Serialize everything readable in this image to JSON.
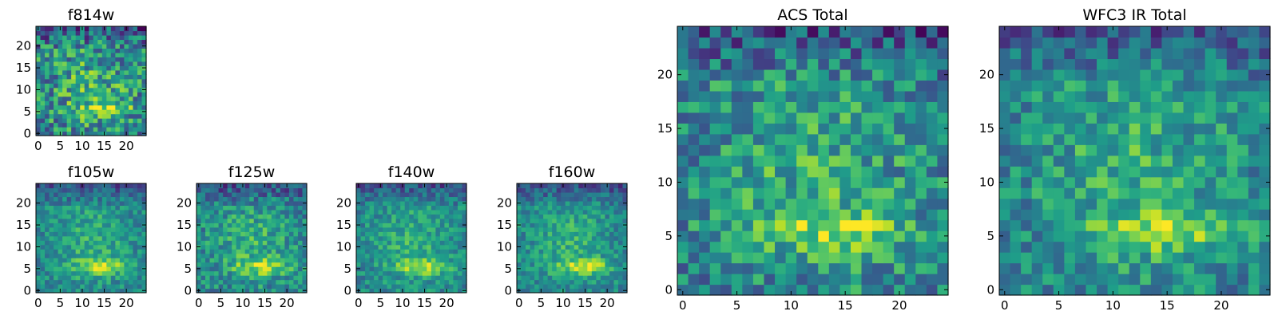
{
  "chart_data": [
    {
      "type": "heatmap",
      "title": "f814w",
      "grid_size": 25,
      "colormap": "viridis",
      "xticks": [
        "0",
        "5",
        "10",
        "15",
        "20"
      ],
      "yticks": [
        "0",
        "5",
        "10",
        "15",
        "20"
      ],
      "seed": 11,
      "noise": 0.3
    },
    {
      "type": "heatmap",
      "title": "f105w",
      "grid_size": 25,
      "colormap": "viridis",
      "xticks": [
        "0",
        "5",
        "10",
        "15",
        "20"
      ],
      "yticks": [
        "0",
        "5",
        "10",
        "15",
        "20"
      ],
      "seed": 23,
      "noise": 0.16
    },
    {
      "type": "heatmap",
      "title": "f125w",
      "grid_size": 25,
      "colormap": "viridis",
      "xticks": [
        "0",
        "5",
        "10",
        "15",
        "20"
      ],
      "yticks": [
        "0",
        "5",
        "10",
        "15",
        "20"
      ],
      "seed": 37,
      "noise": 0.2
    },
    {
      "type": "heatmap",
      "title": "f140w",
      "grid_size": 25,
      "colormap": "viridis",
      "xticks": [
        "0",
        "5",
        "10",
        "15",
        "20"
      ],
      "yticks": [
        "0",
        "5",
        "10",
        "15",
        "20"
      ],
      "seed": 41,
      "noise": 0.16
    },
    {
      "type": "heatmap",
      "title": "f160w",
      "grid_size": 25,
      "colormap": "viridis",
      "xticks": [
        "0",
        "5",
        "10",
        "15",
        "20"
      ],
      "yticks": [
        "0",
        "5",
        "10",
        "15",
        "20"
      ],
      "seed": 53,
      "noise": 0.16
    },
    {
      "type": "heatmap",
      "title": "ACS Total",
      "grid_size": 25,
      "colormap": "viridis",
      "xticks": [
        "0",
        "5",
        "10",
        "15",
        "20"
      ],
      "yticks": [
        "0",
        "5",
        "10",
        "15",
        "20"
      ],
      "seed": 67,
      "noise": 0.24
    },
    {
      "type": "heatmap",
      "title": "WFC3 IR Total",
      "grid_size": 25,
      "colormap": "viridis",
      "xticks": [
        "0",
        "5",
        "10",
        "15",
        "20"
      ],
      "yticks": [
        "0",
        "5",
        "10",
        "15",
        "20"
      ],
      "seed": 79,
      "noise": 0.2
    }
  ]
}
